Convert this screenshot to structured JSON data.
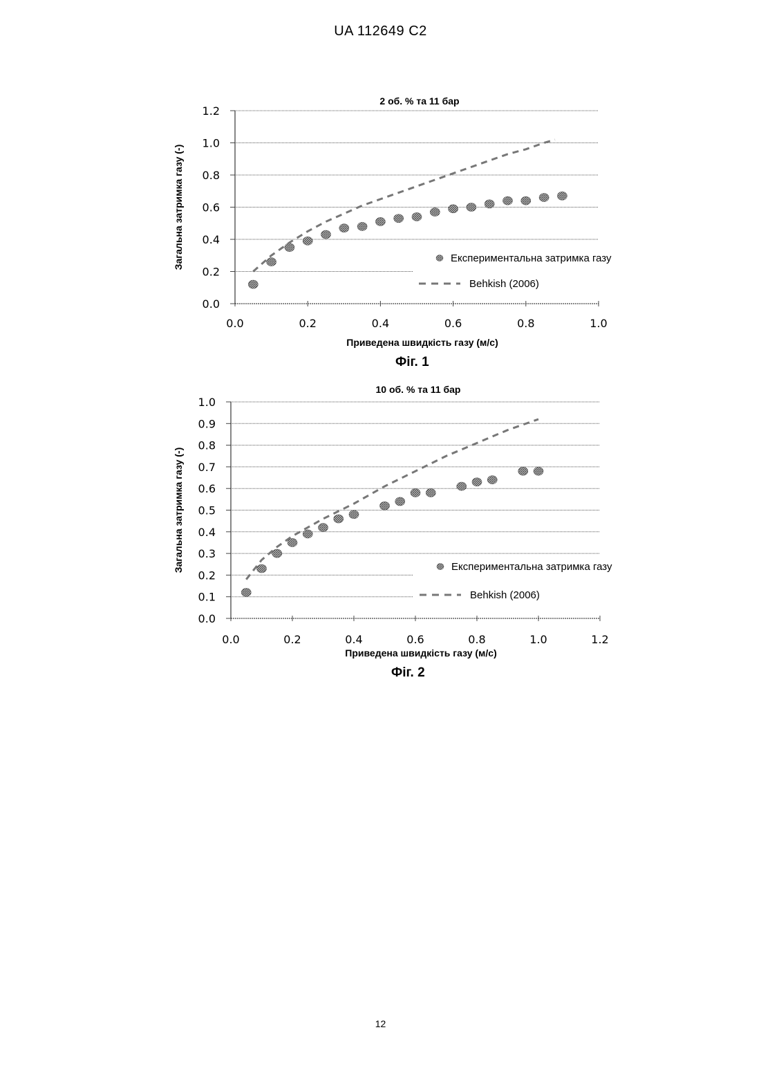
{
  "header": {
    "text": "UA   112649   C2"
  },
  "page_number": "12",
  "colors": {
    "points": "#888888",
    "dashed_line": "#777777",
    "grid": "#555555",
    "text": "#000000"
  },
  "figures": [
    {
      "caption": "Фіг. 1"
    },
    {
      "caption": "Фіг. 2"
    }
  ],
  "chart_data": [
    {
      "type": "scatter",
      "title": "2 об. % та 11 бар",
      "xlabel": "Приведена швидкість газу (м/с)",
      "ylabel": "Загальна затримка газу (-)",
      "xlim": [
        0.0,
        1.0
      ],
      "ylim": [
        0.0,
        1.2
      ],
      "x_ticks": [
        "0.0",
        "0.2",
        "0.4",
        "0.6",
        "0.8",
        "1.0"
      ],
      "y_ticks": [
        "0.0",
        "0.2",
        "0.4",
        "0.6",
        "0.8",
        "1.0",
        "1.2"
      ],
      "grid": true,
      "legend_position": "bottom-right",
      "series": [
        {
          "name": "Експериментальна затримка газу",
          "style": "points",
          "x": [
            0.05,
            0.1,
            0.15,
            0.2,
            0.25,
            0.3,
            0.35,
            0.4,
            0.45,
            0.5,
            0.55,
            0.6,
            0.65,
            0.7,
            0.75,
            0.8,
            0.85,
            0.9
          ],
          "y": [
            0.12,
            0.26,
            0.35,
            0.39,
            0.43,
            0.47,
            0.48,
            0.51,
            0.53,
            0.54,
            0.57,
            0.59,
            0.6,
            0.62,
            0.64,
            0.64,
            0.66,
            0.67
          ]
        },
        {
          "name": "Behkish (2006)",
          "style": "dashed-line",
          "x": [
            0.05,
            0.1,
            0.15,
            0.2,
            0.25,
            0.3,
            0.35,
            0.4,
            0.45,
            0.5,
            0.55,
            0.6,
            0.65,
            0.7,
            0.75,
            0.8,
            0.85,
            0.88
          ],
          "y": [
            0.2,
            0.3,
            0.38,
            0.45,
            0.51,
            0.56,
            0.61,
            0.65,
            0.69,
            0.73,
            0.77,
            0.81,
            0.85,
            0.89,
            0.93,
            0.96,
            1.0,
            1.02
          ]
        }
      ]
    },
    {
      "type": "scatter",
      "title": "10 об. % та 11 бар",
      "xlabel": "Приведена швидкість газу (м/с)",
      "ylabel": "Загальна затримка газу (-)",
      "xlim": [
        0.0,
        1.2
      ],
      "ylim": [
        0.0,
        1.0
      ],
      "x_ticks": [
        "0.0",
        "0.2",
        "0.4",
        "0.6",
        "0.8",
        "1.0",
        "1.2"
      ],
      "y_ticks": [
        "0.0",
        "0.1",
        "0.2",
        "0.3",
        "0.4",
        "0.5",
        "0.6",
        "0.7",
        "0.8",
        "0.9",
        "1.0"
      ],
      "grid": true,
      "legend_position": "bottom-right",
      "series": [
        {
          "name": "Експериментальна затримка газу",
          "style": "points",
          "x": [
            0.05,
            0.1,
            0.15,
            0.2,
            0.25,
            0.3,
            0.35,
            0.4,
            0.5,
            0.55,
            0.6,
            0.65,
            0.75,
            0.8,
            0.85,
            0.95,
            1.0
          ],
          "y": [
            0.12,
            0.23,
            0.3,
            0.35,
            0.39,
            0.42,
            0.46,
            0.48,
            0.52,
            0.54,
            0.58,
            0.58,
            0.61,
            0.63,
            0.64,
            0.68,
            0.68
          ]
        },
        {
          "name": "Behkish (2006)",
          "style": "dashed-line",
          "x": [
            0.05,
            0.1,
            0.15,
            0.2,
            0.3,
            0.4,
            0.5,
            0.6,
            0.7,
            0.8,
            0.9,
            1.0
          ],
          "y": [
            0.18,
            0.27,
            0.33,
            0.38,
            0.46,
            0.53,
            0.61,
            0.68,
            0.75,
            0.81,
            0.87,
            0.92
          ]
        }
      ]
    }
  ]
}
